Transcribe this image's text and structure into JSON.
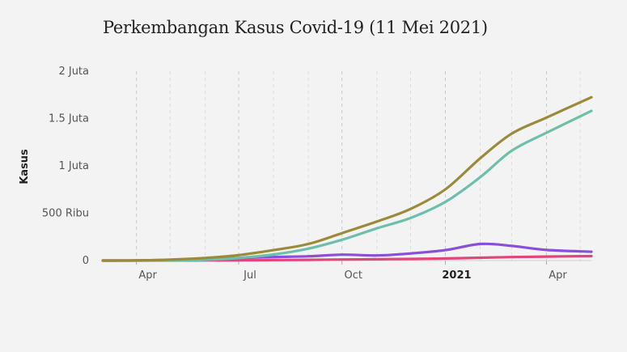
{
  "chart_data": {
    "type": "line",
    "title": "Perkembangan Kasus Covid-19 (11 Mei 2021)",
    "ylabel": "Kasus",
    "xlabel": "",
    "ylim": [
      0,
      2000000
    ],
    "yticks": [
      {
        "value": 0,
        "label": "0"
      },
      {
        "value": 500000,
        "label": "500 Ribu"
      },
      {
        "value": 1000000,
        "label": "1 Juta"
      },
      {
        "value": 1500000,
        "label": "1.5 Juta"
      },
      {
        "value": 2000000,
        "label": "2 Juta"
      }
    ],
    "xlim": [
      "2020-03-02",
      "2021-05-11"
    ],
    "xticks": [
      {
        "date": "2020-04-01",
        "label": "Apr",
        "bold": false
      },
      {
        "date": "2020-07-01",
        "label": "Jul",
        "bold": false
      },
      {
        "date": "2020-10-01",
        "label": "Oct",
        "bold": false
      },
      {
        "date": "2021-01-01",
        "label": "2021",
        "bold": true
      },
      {
        "date": "2021-04-01",
        "label": "Apr",
        "bold": false
      }
    ],
    "grid": "vertical-dashed",
    "series": [
      {
        "color": "#9a8a3a",
        "points": [
          [
            "2020-03-02",
            0
          ],
          [
            "2020-04-01",
            1700
          ],
          [
            "2020-05-01",
            10500
          ],
          [
            "2020-06-01",
            27000
          ],
          [
            "2020-07-01",
            57000
          ],
          [
            "2020-08-01",
            110000
          ],
          [
            "2020-09-01",
            175000
          ],
          [
            "2020-10-01",
            290000
          ],
          [
            "2020-11-01",
            412000
          ],
          [
            "2020-12-01",
            545000
          ],
          [
            "2021-01-01",
            752000
          ],
          [
            "2021-02-01",
            1080000
          ],
          [
            "2021-03-01",
            1340000
          ],
          [
            "2021-04-01",
            1510000
          ],
          [
            "2021-05-11",
            1725000
          ]
        ]
      },
      {
        "color": "#6bbfab",
        "points": [
          [
            "2020-03-02",
            0
          ],
          [
            "2020-04-01",
            100
          ],
          [
            "2020-05-01",
            2400
          ],
          [
            "2020-06-01",
            8000
          ],
          [
            "2020-07-01",
            27000
          ],
          [
            "2020-08-01",
            64000
          ],
          [
            "2020-09-01",
            126000
          ],
          [
            "2020-10-01",
            220000
          ],
          [
            "2020-11-01",
            340000
          ],
          [
            "2020-12-01",
            450000
          ],
          [
            "2021-01-01",
            620000
          ],
          [
            "2021-02-01",
            880000
          ],
          [
            "2021-03-01",
            1160000
          ],
          [
            "2021-04-01",
            1350000
          ],
          [
            "2021-05-11",
            1580000
          ]
        ]
      },
      {
        "color": "#8a4fd8",
        "points": [
          [
            "2020-03-02",
            0
          ],
          [
            "2020-04-01",
            1500
          ],
          [
            "2020-05-01",
            7000
          ],
          [
            "2020-06-01",
            17000
          ],
          [
            "2020-07-01",
            27000
          ],
          [
            "2020-08-01",
            38000
          ],
          [
            "2020-09-01",
            45000
          ],
          [
            "2020-10-01",
            62000
          ],
          [
            "2020-11-01",
            54000
          ],
          [
            "2020-12-01",
            75000
          ],
          [
            "2021-01-01",
            110000
          ],
          [
            "2021-02-01",
            175000
          ],
          [
            "2021-03-01",
            155000
          ],
          [
            "2021-04-01",
            112000
          ],
          [
            "2021-05-11",
            93000
          ]
        ]
      },
      {
        "color": "#e0457b",
        "points": [
          [
            "2020-03-02",
            0
          ],
          [
            "2020-04-01",
            150
          ],
          [
            "2020-05-01",
            800
          ],
          [
            "2020-06-01",
            1700
          ],
          [
            "2020-07-01",
            3000
          ],
          [
            "2020-08-01",
            5000
          ],
          [
            "2020-09-01",
            7500
          ],
          [
            "2020-10-01",
            11000
          ],
          [
            "2020-11-01",
            14000
          ],
          [
            "2020-12-01",
            17500
          ],
          [
            "2021-01-01",
            22000
          ],
          [
            "2021-02-01",
            30000
          ],
          [
            "2021-03-01",
            37000
          ],
          [
            "2021-04-01",
            42000
          ],
          [
            "2021-05-11",
            47000
          ]
        ]
      }
    ]
  }
}
